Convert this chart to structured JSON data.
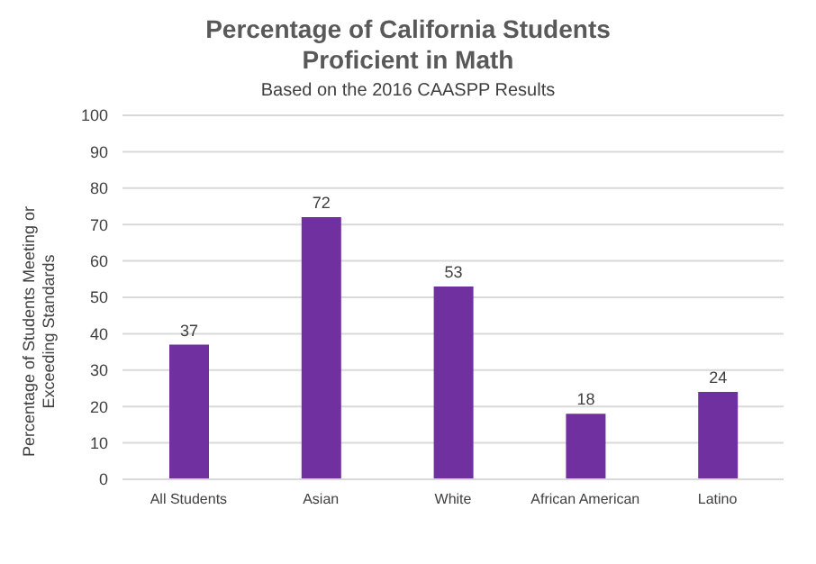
{
  "chart_data": {
    "type": "bar",
    "title": "Percentage of California Students Proficient in Math",
    "subtitle": "Based on the 2016 CAASPP Results",
    "ylabel": "Percentage of Students Meeting or Exceeding Standards",
    "categories": [
      "All Students",
      "Asian",
      "White",
      "African American",
      "Latino"
    ],
    "values": [
      37,
      72,
      53,
      18,
      24
    ],
    "color": "#7030a0",
    "ylim": [
      0,
      100
    ],
    "yticks": [
      0,
      10,
      20,
      30,
      40,
      50,
      60,
      70,
      80,
      90,
      100
    ],
    "grid": "y",
    "data_labels": true
  }
}
